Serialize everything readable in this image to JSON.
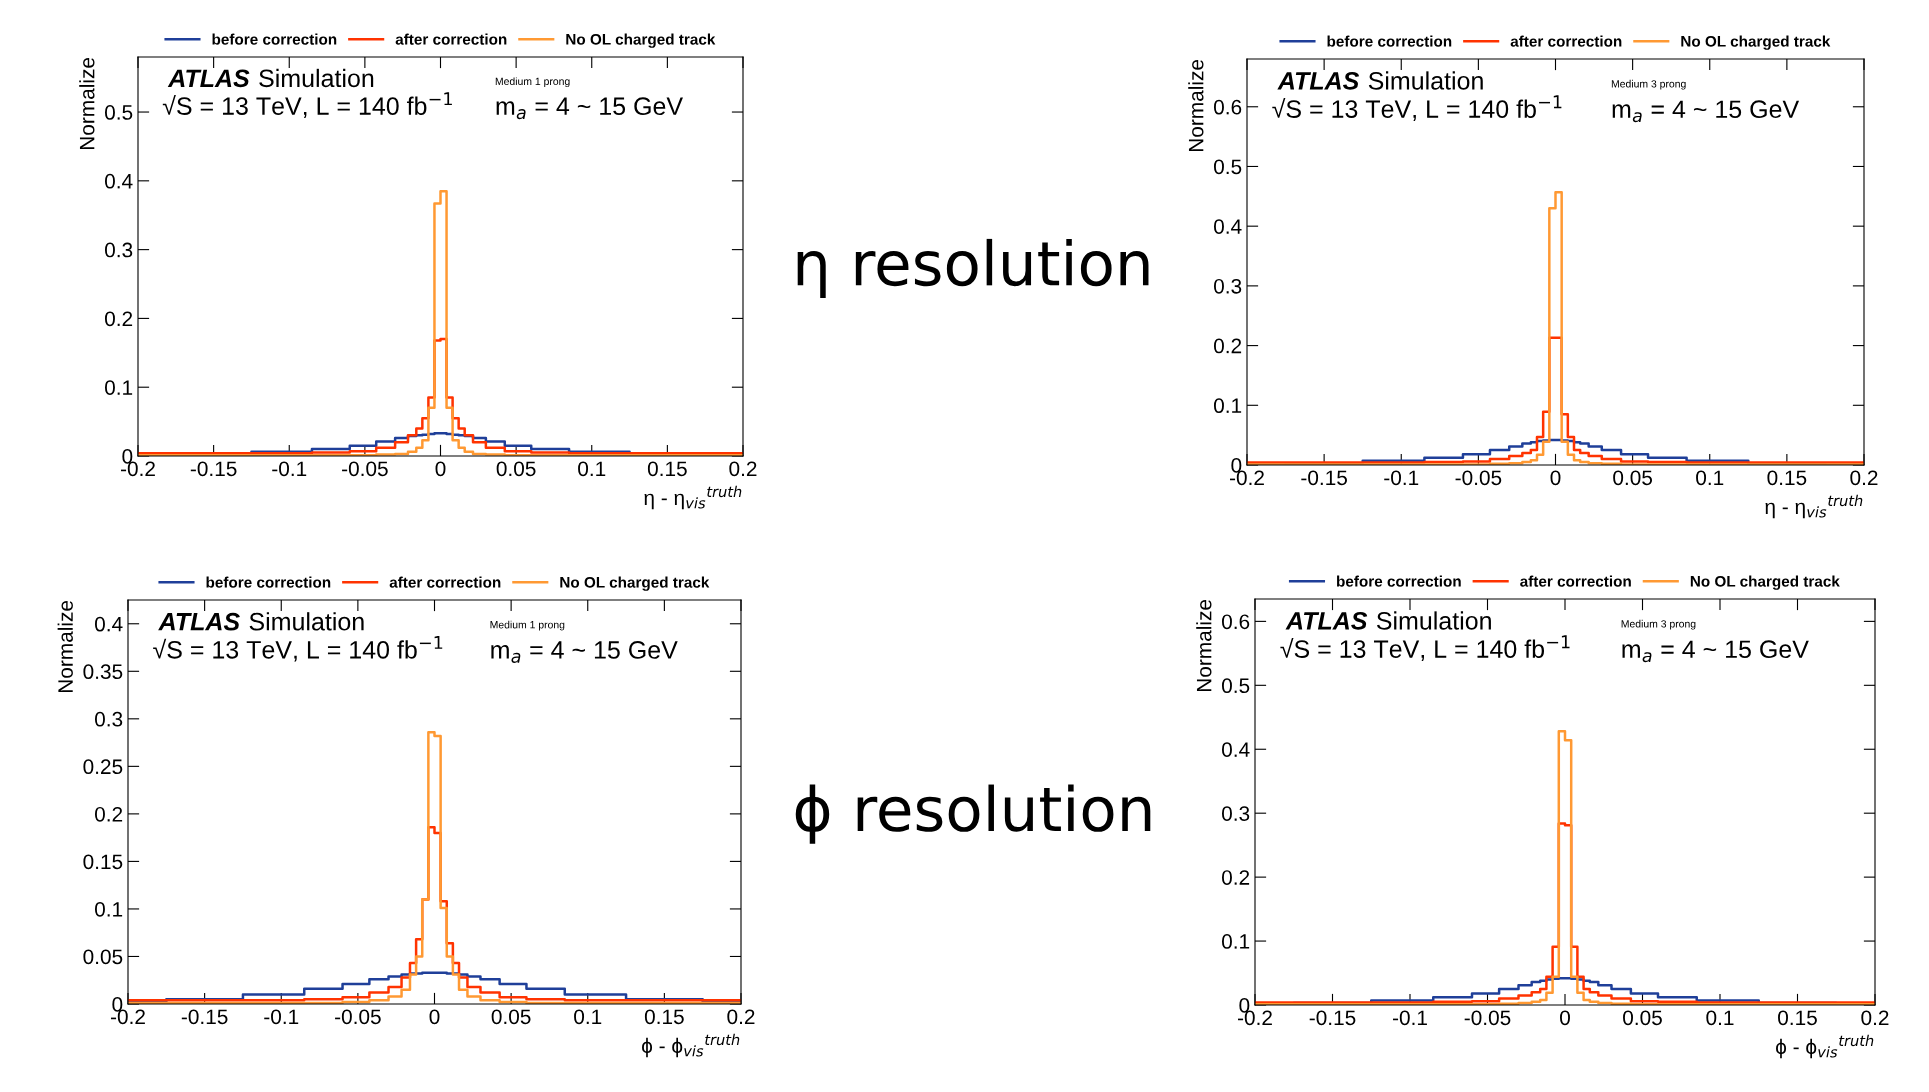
{
  "chart_data": [
    {
      "type": "step",
      "xlabel": "η - η$_{vis}$$^{truth}$",
      "ylabel": "Normalize",
      "legend": "top",
      "annotations": [
        "ATLAS",
        "Simulation",
        "√S = 13 TeV, L = 140 fb$^{−1}$",
        "Medium 1 prong",
        "m$_{a}$ = 4 ~ 15 GeV",
        "η resolution"
      ],
      "x": [
        -0.2,
        -0.15,
        -0.1,
        -0.07,
        -0.05,
        -0.035,
        -0.025,
        -0.018,
        -0.014,
        -0.01,
        -0.006,
        -0.002,
        0.002,
        0.006,
        0.01,
        0.014,
        0.018,
        0.025,
        0.035,
        0.05,
        0.07,
        0.1,
        0.15,
        0.2
      ],
      "series": [
        {
          "name": "before correction",
          "color": "#1f3f99",
          "values": [
            0.001,
            0.003,
            0.006,
            0.01,
            0.015,
            0.021,
            0.026,
            0.029,
            0.03,
            0.031,
            0.032,
            0.033,
            0.033,
            0.032,
            0.031,
            0.03,
            0.029,
            0.026,
            0.021,
            0.015,
            0.01,
            0.006,
            0.003,
            0.001
          ]
        },
        {
          "name": "after correction",
          "color": "#ff3300",
          "values": [
            0.004,
            0.004,
            0.004,
            0.005,
            0.007,
            0.012,
            0.02,
            0.03,
            0.04,
            0.055,
            0.085,
            0.168,
            0.17,
            0.085,
            0.055,
            0.04,
            0.03,
            0.02,
            0.012,
            0.007,
            0.005,
            0.004,
            0.004,
            0.004
          ]
        },
        {
          "name": "No OL charged track",
          "color": "#ff9933",
          "values": [
            0.001,
            0.001,
            0.001,
            0.001,
            0.001,
            0.002,
            0.003,
            0.006,
            0.012,
            0.023,
            0.07,
            0.367,
            0.385,
            0.07,
            0.023,
            0.012,
            0.006,
            0.003,
            0.002,
            0.001,
            0.001,
            0.001,
            0.001,
            0.001
          ]
        }
      ],
      "xlim": [
        -0.2,
        0.2
      ],
      "xticks": [
        -0.2,
        -0.15,
        -0.1,
        -0.05,
        0,
        0.05,
        0.1,
        0.15,
        0.2
      ],
      "ylim": [
        0,
        0.58
      ],
      "yticks": [
        0,
        0.1,
        0.2,
        0.3,
        0.4,
        0.5
      ],
      "grid": false
    },
    {
      "type": "step",
      "xlabel": "η - η$_{vis}$$^{truth}$",
      "ylabel": "Normalize",
      "legend": "top",
      "annotations": [
        "ATLAS",
        "Simulation",
        "√S = 13 TeV, L = 140 fb$^{−1}$",
        "Medium 3 prong",
        "m$_{a}$ = 4 ~ 15 GeV"
      ],
      "x": [
        -0.2,
        -0.15,
        -0.1,
        -0.07,
        -0.05,
        -0.035,
        -0.025,
        -0.018,
        -0.014,
        -0.01,
        -0.006,
        -0.002,
        0.002,
        0.006,
        0.01,
        0.014,
        0.018,
        0.025,
        0.035,
        0.05,
        0.07,
        0.1,
        0.15,
        0.2
      ],
      "series": [
        {
          "name": "before correction",
          "color": "#1f3f99",
          "values": [
            0.001,
            0.003,
            0.007,
            0.012,
            0.018,
            0.025,
            0.031,
            0.036,
            0.038,
            0.04,
            0.041,
            0.042,
            0.042,
            0.041,
            0.04,
            0.038,
            0.036,
            0.031,
            0.025,
            0.018,
            0.012,
            0.007,
            0.003,
            0.001
          ]
        },
        {
          "name": "after correction",
          "color": "#ff3300",
          "values": [
            0.004,
            0.004,
            0.004,
            0.005,
            0.006,
            0.01,
            0.015,
            0.02,
            0.025,
            0.047,
            0.089,
            0.213,
            0.213,
            0.085,
            0.047,
            0.025,
            0.02,
            0.015,
            0.01,
            0.006,
            0.005,
            0.004,
            0.004,
            0.004
          ]
        },
        {
          "name": "No OL charged track",
          "color": "#ff9933",
          "values": [
            0.001,
            0.001,
            0.001,
            0.001,
            0.001,
            0.002,
            0.003,
            0.005,
            0.008,
            0.017,
            0.039,
            0.43,
            0.457,
            0.039,
            0.017,
            0.008,
            0.005,
            0.003,
            0.002,
            0.001,
            0.001,
            0.001,
            0.001,
            0.001
          ]
        }
      ],
      "xlim": [
        -0.2,
        0.2
      ],
      "xticks": [
        -0.2,
        -0.15,
        -0.1,
        -0.05,
        0,
        0.05,
        0.1,
        0.15,
        0.2
      ],
      "ylim": [
        0,
        0.68
      ],
      "yticks": [
        0,
        0.1,
        0.2,
        0.3,
        0.4,
        0.5,
        0.6
      ],
      "grid": false
    },
    {
      "type": "step",
      "xlabel": "ϕ - ϕ$_{vis}$$^{truth}$",
      "ylabel": "Normalize",
      "legend": "top",
      "annotations": [
        "ATLAS",
        "Simulation",
        "√S = 13 TeV, L = 140 fb$^{−1}$",
        "Medium 1 prong",
        "m$_{a}$ = 4 ~ 15 GeV",
        "ϕ resolution"
      ],
      "x": [
        -0.2,
        -0.15,
        -0.1,
        -0.07,
        -0.05,
        -0.035,
        -0.025,
        -0.018,
        -0.014,
        -0.01,
        -0.006,
        -0.002,
        0.002,
        0.006,
        0.01,
        0.014,
        0.018,
        0.025,
        0.035,
        0.05,
        0.07,
        0.1,
        0.15,
        0.2
      ],
      "series": [
        {
          "name": "before correction",
          "color": "#1f3f99",
          "values": [
            0.002,
            0.005,
            0.01,
            0.016,
            0.021,
            0.026,
            0.029,
            0.031,
            0.032,
            0.032,
            0.033,
            0.033,
            0.033,
            0.033,
            0.032,
            0.032,
            0.031,
            0.029,
            0.026,
            0.021,
            0.016,
            0.01,
            0.005,
            0.002
          ]
        },
        {
          "name": "after correction",
          "color": "#ff3300",
          "values": [
            0.004,
            0.004,
            0.004,
            0.005,
            0.007,
            0.012,
            0.018,
            0.028,
            0.043,
            0.068,
            0.11,
            0.186,
            0.18,
            0.108,
            0.064,
            0.043,
            0.028,
            0.018,
            0.012,
            0.007,
            0.005,
            0.004,
            0.004,
            0.004
          ]
        },
        {
          "name": "No OL charged track",
          "color": "#ff9933",
          "values": [
            0.001,
            0.001,
            0.001,
            0.001,
            0.002,
            0.004,
            0.008,
            0.015,
            0.031,
            0.05,
            0.11,
            0.286,
            0.282,
            0.101,
            0.05,
            0.031,
            0.015,
            0.008,
            0.004,
            0.002,
            0.001,
            0.001,
            0.001,
            0.001
          ]
        }
      ],
      "xlim": [
        -0.2,
        0.2
      ],
      "xticks": [
        -0.2,
        -0.15,
        -0.1,
        -0.05,
        0,
        0.05,
        0.1,
        0.15,
        0.2
      ],
      "ylim": [
        0,
        0.425
      ],
      "yticks": [
        0,
        0.05,
        0.1,
        0.15,
        0.2,
        0.25,
        0.3,
        0.35,
        0.4
      ],
      "grid": false
    },
    {
      "type": "step",
      "xlabel": "ϕ - ϕ$_{vis}$$^{truth}$",
      "ylabel": "Normalize",
      "legend": "top",
      "annotations": [
        "ATLAS",
        "Simulation",
        "√S = 13 TeV, L = 140 fb$^{−1}$",
        "Medium 3 prong",
        "m$_{a}$ = 4 ~ 15 GeV"
      ],
      "x": [
        -0.2,
        -0.15,
        -0.1,
        -0.07,
        -0.05,
        -0.035,
        -0.025,
        -0.018,
        -0.014,
        -0.01,
        -0.006,
        -0.002,
        0.002,
        0.006,
        0.01,
        0.014,
        0.018,
        0.025,
        0.035,
        0.05,
        0.07,
        0.1,
        0.15,
        0.2
      ],
      "series": [
        {
          "name": "before correction",
          "color": "#1f3f99",
          "values": [
            0.001,
            0.003,
            0.007,
            0.012,
            0.018,
            0.025,
            0.031,
            0.036,
            0.038,
            0.04,
            0.041,
            0.042,
            0.042,
            0.041,
            0.04,
            0.038,
            0.036,
            0.031,
            0.025,
            0.018,
            0.012,
            0.007,
            0.003,
            0.001
          ]
        },
        {
          "name": "after correction",
          "color": "#ff3300",
          "values": [
            0.004,
            0.004,
            0.004,
            0.005,
            0.006,
            0.01,
            0.015,
            0.02,
            0.025,
            0.044,
            0.091,
            0.284,
            0.281,
            0.091,
            0.044,
            0.025,
            0.02,
            0.015,
            0.01,
            0.006,
            0.005,
            0.004,
            0.004,
            0.004
          ]
        },
        {
          "name": "No OL charged track",
          "color": "#ff9933",
          "values": [
            0.001,
            0.001,
            0.001,
            0.001,
            0.001,
            0.002,
            0.003,
            0.005,
            0.008,
            0.019,
            0.044,
            0.428,
            0.414,
            0.044,
            0.019,
            0.008,
            0.005,
            0.003,
            0.002,
            0.001,
            0.001,
            0.001,
            0.001,
            0.001
          ]
        }
      ],
      "xlim": [
        -0.2,
        0.2
      ],
      "xticks": [
        -0.2,
        -0.15,
        -0.1,
        -0.05,
        0,
        0.05,
        0.1,
        0.15,
        0.2
      ],
      "ylim": [
        0,
        0.635
      ],
      "yticks": [
        0,
        0.1,
        0.2,
        0.3,
        0.4,
        0.5,
        0.6
      ],
      "grid": false
    }
  ]
}
